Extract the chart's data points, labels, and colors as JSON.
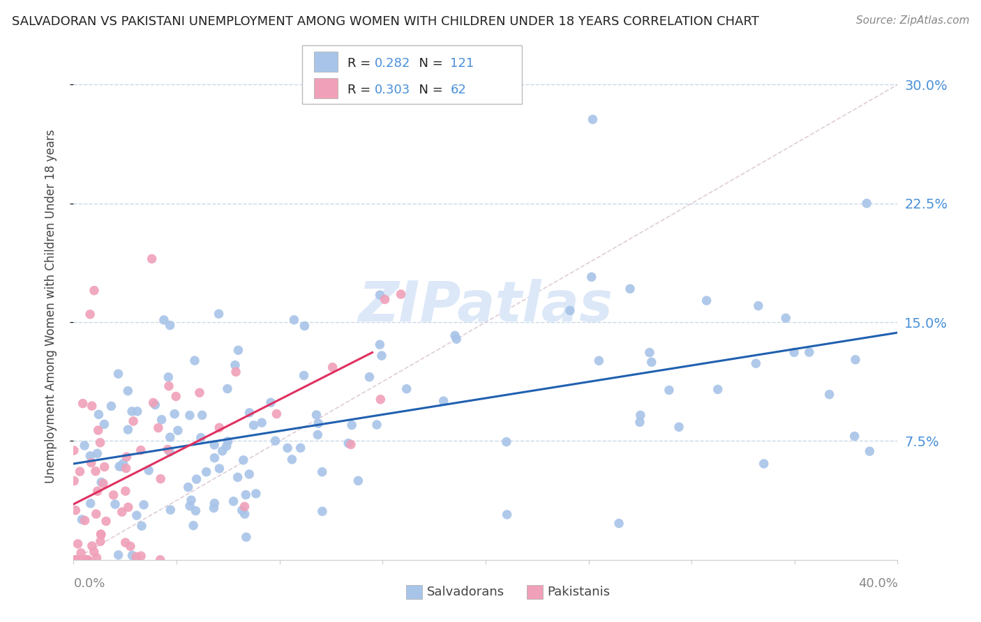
{
  "title": "SALVADORAN VS PAKISTANI UNEMPLOYMENT AMONG WOMEN WITH CHILDREN UNDER 18 YEARS CORRELATION CHART",
  "source": "Source: ZipAtlas.com",
  "ylabel": "Unemployment Among Women with Children Under 18 years",
  "legend_label1": "Salvadorans",
  "legend_label2": "Pakistanis",
  "R1": "0.282",
  "N1": "121",
  "R2": "0.303",
  "N2": "62",
  "color_salvadoran": "#a8c4e8",
  "color_pakistani": "#f0a0b8",
  "color_trend1": "#2060b0",
  "color_trend2": "#e03060",
  "color_diag": "#d0b8c8",
  "color_watermark": "#dce8f8",
  "color_ytick": "#4a90d9",
  "color_xtick": "#888888",
  "color_title": "#222222",
  "color_source": "#888888",
  "color_ylabel": "#444444",
  "background_color": "#ffffff",
  "grid_color": "#c8d8e8",
  "xmin": 0.0,
  "xmax": 0.4,
  "ymin": 0.0,
  "ymax": 0.32,
  "yticks": [
    0.075,
    0.15,
    0.225,
    0.3
  ],
  "ytick_labels": [
    "7.5%",
    "15.0%",
    "22.5%",
    "30.0%"
  ]
}
